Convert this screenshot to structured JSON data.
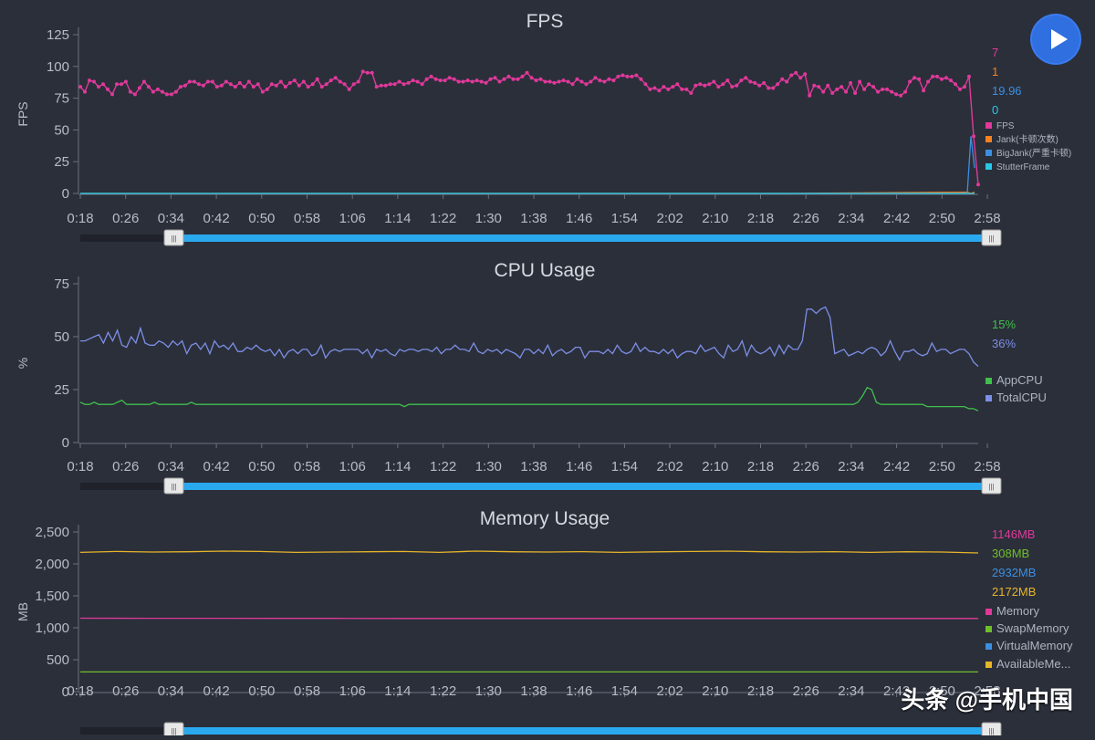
{
  "time_ticks": [
    "0:18",
    "0:26",
    "0:34",
    "0:42",
    "0:50",
    "0:58",
    "1:06",
    "1:14",
    "1:22",
    "1:30",
    "1:38",
    "1:46",
    "1:54",
    "2:02",
    "2:10",
    "2:18",
    "2:26",
    "2:34",
    "2:42",
    "2:50",
    "2:58"
  ],
  "watermark": "头条 @手机中国",
  "handle_glyph": "|||",
  "chart_data": [
    {
      "type": "line",
      "title": "FPS",
      "ylabel": "FPS",
      "ylim": [
        0,
        125
      ],
      "yticks": [
        "0",
        "25",
        "50",
        "75",
        "100",
        "125"
      ],
      "x_range": [
        "0:18",
        "2:58"
      ],
      "legend_position": "right",
      "current_values": [
        {
          "text": "7",
          "color": "#e0399a"
        },
        {
          "text": "1",
          "color": "#f5821f"
        },
        {
          "text": "19.96",
          "color": "#3b8fe0"
        },
        {
          "text": "0",
          "color": "#27c8e6"
        }
      ],
      "series": [
        {
          "name": "FPS",
          "color": "#e0399a",
          "values": [
            84,
            80,
            89,
            88,
            84,
            86,
            82,
            78,
            86,
            86,
            88,
            80,
            78,
            83,
            88,
            84,
            80,
            82,
            80,
            78,
            78,
            80,
            84,
            85,
            88,
            88,
            86,
            85,
            88,
            88,
            84,
            85,
            88,
            86,
            84,
            87,
            84,
            88,
            84,
            86,
            80,
            82,
            86,
            85,
            88,
            84,
            87,
            89,
            85,
            88,
            84,
            86,
            90,
            84,
            86,
            89,
            91,
            88,
            86,
            82,
            86,
            88,
            96,
            95,
            95,
            84,
            85,
            85,
            86,
            86,
            88,
            86,
            87,
            89,
            88,
            86,
            90,
            92,
            90,
            89,
            89,
            91,
            90,
            88,
            88,
            89,
            88,
            89,
            88,
            87,
            90,
            91,
            88,
            90,
            92,
            90,
            90,
            92,
            95,
            91,
            89,
            90,
            88,
            88,
            87,
            88,
            89,
            88,
            86,
            90,
            88,
            86,
            88,
            91,
            89,
            88,
            90,
            89,
            92,
            93,
            92,
            92,
            93,
            90,
            86,
            82,
            83,
            81,
            84,
            82,
            84,
            86,
            82,
            82,
            79,
            85,
            86,
            85,
            86,
            88,
            84,
            86,
            89,
            84,
            85,
            89,
            91,
            88,
            87,
            85,
            87,
            83,
            83,
            86,
            90,
            88,
            93,
            95,
            91,
            94,
            77,
            85,
            84,
            80,
            85,
            79,
            82,
            84,
            80,
            87,
            79,
            88,
            82,
            86,
            84,
            80,
            82,
            82,
            80,
            78,
            77,
            80,
            88,
            91,
            90,
            81,
            88,
            92,
            92,
            90,
            91,
            89,
            86,
            82,
            84,
            92,
            45,
            7
          ]
        },
        {
          "name": "Jank(卡顿次数)",
          "color": "#f5821f",
          "values": [
            0,
            0,
            0,
            0,
            0,
            1,
            0,
            1
          ]
        },
        {
          "name": "BigJank(严重卡顿)",
          "color": "#3b8fe0",
          "values": [
            0,
            0,
            0,
            0,
            0,
            45,
            19.96
          ]
        },
        {
          "name": "StutterFrame",
          "color": "#27c8e6",
          "values": [
            0,
            0,
            0,
            0,
            0,
            0,
            0
          ]
        }
      ]
    },
    {
      "type": "line",
      "title": "CPU Usage",
      "ylabel": "%",
      "ylim": [
        0,
        75
      ],
      "yticks": [
        "0",
        "25",
        "50",
        "75"
      ],
      "x_range": [
        "0:18",
        "2:58"
      ],
      "legend_position": "right",
      "current_values": [
        {
          "text": "15%",
          "color": "#3fbf4c"
        },
        {
          "text": "36%",
          "color": "#7c8fe6"
        }
      ],
      "series": [
        {
          "name": "AppCPU",
          "color": "#3fbf4c",
          "values": [
            19,
            18,
            18,
            19,
            18,
            18,
            18,
            18,
            19,
            20,
            18,
            18,
            18,
            18,
            18,
            18,
            19,
            18,
            18,
            18,
            18,
            18,
            18,
            18,
            19,
            18,
            18,
            18,
            18,
            18,
            18,
            18,
            18,
            18,
            18,
            18,
            18,
            18,
            18,
            18,
            18,
            18,
            18,
            18,
            18,
            18,
            18,
            18,
            18,
            18,
            18,
            18,
            18,
            18,
            18,
            18,
            18,
            18,
            18,
            18,
            18,
            18,
            18,
            18,
            18,
            18,
            18,
            18,
            18,
            18,
            17,
            18,
            18,
            18,
            18,
            18,
            18,
            18,
            18,
            18,
            18,
            18,
            18,
            18,
            18,
            18,
            18,
            18,
            18,
            18,
            18,
            18,
            18,
            18,
            18,
            18,
            18,
            18,
            18,
            18,
            18,
            18,
            18,
            18,
            18,
            18,
            18,
            18,
            18,
            18,
            18,
            18,
            18,
            18,
            18,
            18,
            18,
            18,
            18,
            18,
            18,
            18,
            18,
            18,
            18,
            18,
            18,
            18,
            18,
            18,
            18,
            18,
            18,
            18,
            18,
            18,
            18,
            18,
            18,
            18,
            18,
            18,
            18,
            18,
            18,
            18,
            18,
            18,
            18,
            18,
            18,
            18,
            18,
            18,
            18,
            18,
            18,
            18,
            18,
            18,
            18,
            18,
            18,
            18,
            18,
            18,
            18,
            18,
            19,
            22,
            26,
            25,
            19,
            18,
            18,
            18,
            18,
            18,
            18,
            18,
            18,
            18,
            18,
            17,
            17,
            17,
            17,
            17,
            17,
            17,
            17,
            17,
            16,
            16,
            15
          ]
        },
        {
          "name": "TotalCPU",
          "color": "#7c8fe6",
          "values": [
            48,
            48,
            49,
            50,
            51,
            47,
            52,
            48,
            53,
            46,
            45,
            50,
            47,
            54,
            47,
            46,
            46,
            48,
            47,
            45,
            48,
            46,
            48,
            42,
            46,
            47,
            44,
            47,
            42,
            48,
            45,
            46,
            44,
            47,
            43,
            43,
            45,
            44,
            46,
            44,
            43,
            44,
            41,
            44,
            40,
            43,
            44,
            42,
            44,
            44,
            41,
            42,
            46,
            40,
            43,
            44,
            43,
            44,
            44,
            44,
            44,
            42,
            44,
            40,
            44,
            43,
            44,
            42,
            41,
            44,
            43,
            44,
            44,
            43,
            44,
            44,
            43,
            45,
            42,
            44,
            44,
            46,
            44,
            44,
            43,
            47,
            43,
            42,
            44,
            43,
            44,
            42,
            44,
            43,
            42,
            40,
            44,
            44,
            42,
            44,
            42,
            46,
            41,
            43,
            44,
            42,
            43,
            45,
            45,
            40,
            43,
            43,
            43,
            42,
            44,
            42,
            46,
            43,
            42,
            43,
            47,
            43,
            45,
            43,
            43,
            42,
            44,
            42,
            44,
            40,
            42,
            43,
            43,
            42,
            46,
            43,
            44,
            45,
            42,
            40,
            46,
            43,
            44,
            48,
            41,
            46,
            43,
            42,
            43,
            45,
            41,
            46,
            42,
            46,
            44,
            44,
            48,
            63,
            63,
            61,
            63,
            64,
            59,
            42,
            43,
            44,
            41,
            42,
            43,
            42,
            44,
            45,
            44,
            41,
            43,
            48,
            43,
            39,
            43,
            43,
            44,
            42,
            41,
            42,
            47,
            43,
            44,
            44,
            42,
            43,
            44,
            44,
            42,
            38,
            36
          ]
        }
      ]
    },
    {
      "type": "line",
      "title": "Memory Usage",
      "ylabel": "MB",
      "ylim": [
        0,
        2500
      ],
      "yticks": [
        "0",
        "500",
        "1,000",
        "1,500",
        "2,000",
        "2,500"
      ],
      "x_range": [
        "0:18",
        "2:58"
      ],
      "legend_position": "right",
      "current_values": [
        {
          "text": "1146MB",
          "color": "#e0399a"
        },
        {
          "text": "308MB",
          "color": "#6fbf2a"
        },
        {
          "text": "2932MB",
          "color": "#3b8fe0"
        },
        {
          "text": "2172MB",
          "color": "#e6b52a"
        }
      ],
      "series": [
        {
          "name": "Memory",
          "color": "#e0399a",
          "values": [
            1150,
            1148,
            1148,
            1147,
            1147,
            1146,
            1146,
            1146,
            1146,
            1146,
            1146,
            1146,
            1146,
            1146,
            1146
          ]
        },
        {
          "name": "SwapMemory",
          "color": "#6fbf2a",
          "values": [
            308,
            308,
            308,
            308,
            308,
            308,
            308,
            308,
            308,
            308,
            308,
            308,
            308,
            308,
            308
          ]
        },
        {
          "name": "VirtualMemory",
          "color": "#3b8fe0",
          "values": []
        },
        {
          "name": "AvailableMe...",
          "color": "#e6b52a",
          "values": [
            2180,
            2195,
            2185,
            2190,
            2200,
            2195,
            2180,
            2185,
            2190,
            2195,
            2180,
            2200,
            2190,
            2185,
            2192,
            2180,
            2188,
            2195,
            2200,
            2190,
            2185,
            2192,
            2180,
            2190,
            2186,
            2172
          ]
        }
      ]
    }
  ]
}
